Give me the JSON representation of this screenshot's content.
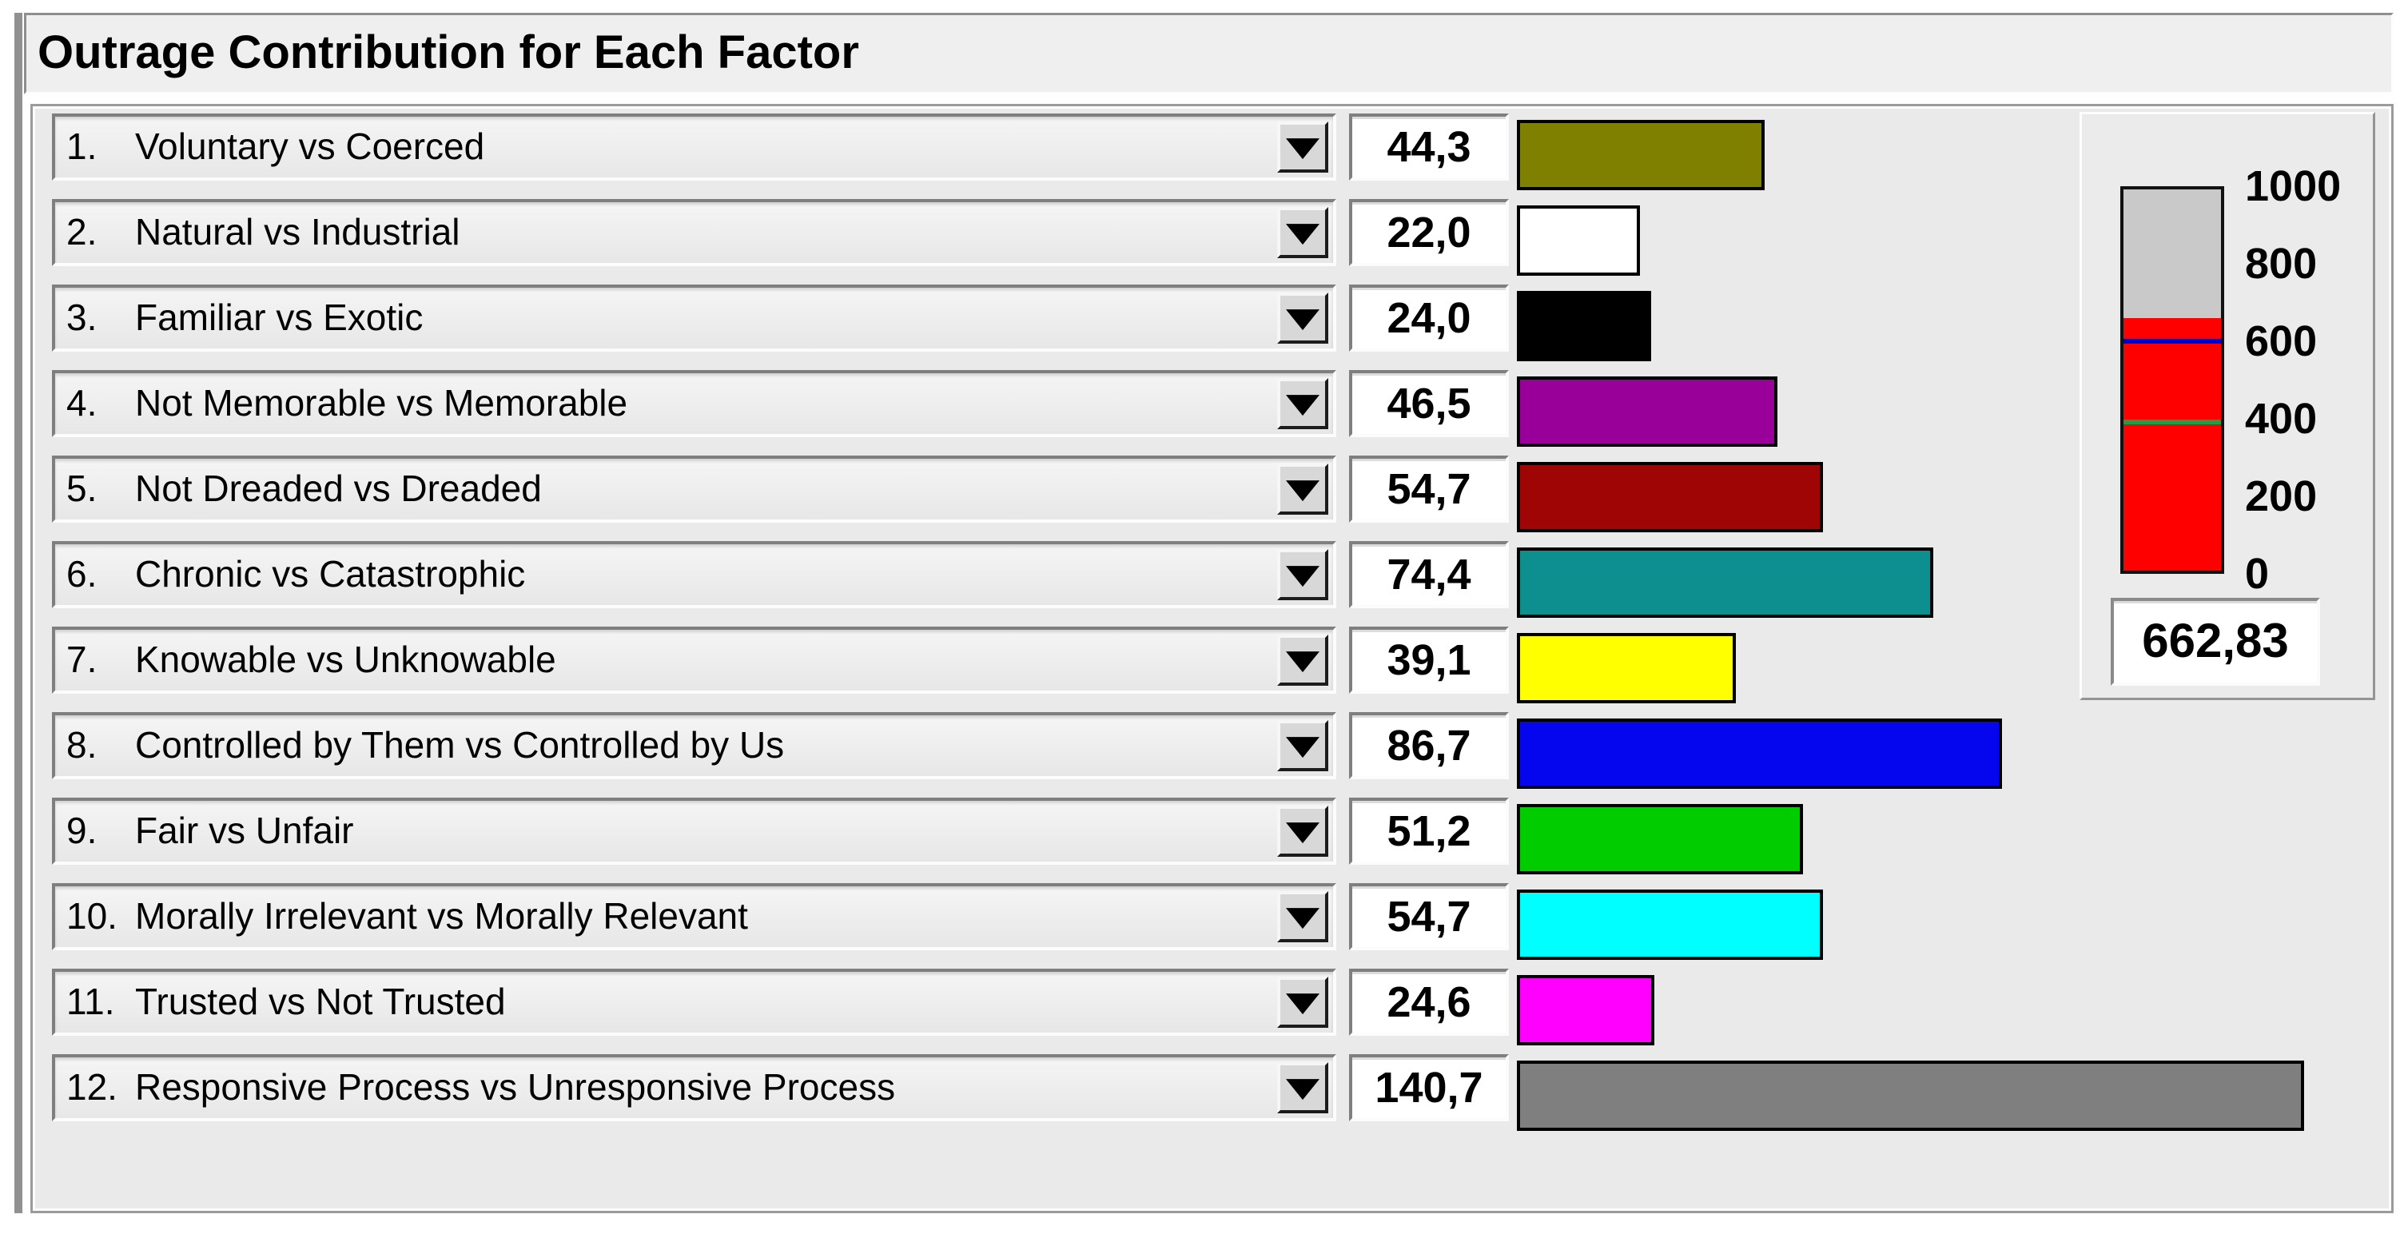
{
  "window": {
    "title": "Outrage Contribution for Each Factor"
  },
  "factors": [
    {
      "number": "1.",
      "label": "Voluntary vs Coerced",
      "value": "44,3",
      "bar_color": "#7F7F00"
    },
    {
      "number": "2.",
      "label": "Natural vs Industrial",
      "value": "22,0",
      "bar_color": "#FFFFFF"
    },
    {
      "number": "3.",
      "label": "Familiar vs Exotic",
      "value": "24,0",
      "bar_color": "#000000"
    },
    {
      "number": "4.",
      "label": "Not Memorable vs Memorable",
      "value": "46,5",
      "bar_color": "#990099"
    },
    {
      "number": "5.",
      "label": "Not Dreaded vs Dreaded",
      "value": "54,7",
      "bar_color": "#A00505"
    },
    {
      "number": "6.",
      "label": "Chronic vs Catastrophic",
      "value": "74,4",
      "bar_color": "#0E8F8F"
    },
    {
      "number": "7.",
      "label": "Knowable vs Unknowable",
      "value": "39,1",
      "bar_color": "#FFFF00"
    },
    {
      "number": "8.",
      "label": "Controlled by Them vs Controlled by Us",
      "value": "86,7",
      "bar_color": "#0505EE"
    },
    {
      "number": "9.",
      "label": "Fair vs Unfair",
      "value": "51,2",
      "bar_color": "#00CC00"
    },
    {
      "number": "10.",
      "label": "Morally Irrelevant vs Morally Relevant",
      "value": "54,7",
      "bar_color": "#00FFFF"
    },
    {
      "number": "11.",
      "label": "Trusted vs Not Trusted",
      "value": "24,6",
      "bar_color": "#FF00FF"
    },
    {
      "number": "12.",
      "label": "Responsive Process vs Unresponsive Process",
      "value": "140,7",
      "bar_color": "#7F7F7F"
    }
  ],
  "gauge": {
    "axis_min": 0,
    "axis_max": 1000,
    "tick_labels": [
      "1000",
      "800",
      "600",
      "400",
      "200",
      "0"
    ],
    "value": 662.83,
    "value_label": "662,83",
    "fill_color": "#FF0000",
    "track_color": "#C9C9C9",
    "markers": [
      {
        "name": "blue-threshold-line",
        "value": 602,
        "color": "#0000C8"
      },
      {
        "name": "green-threshold-line",
        "value": 390,
        "color": "#1E9E46"
      }
    ]
  },
  "icons": {
    "dropdown_arrow": "down-triangle"
  }
}
